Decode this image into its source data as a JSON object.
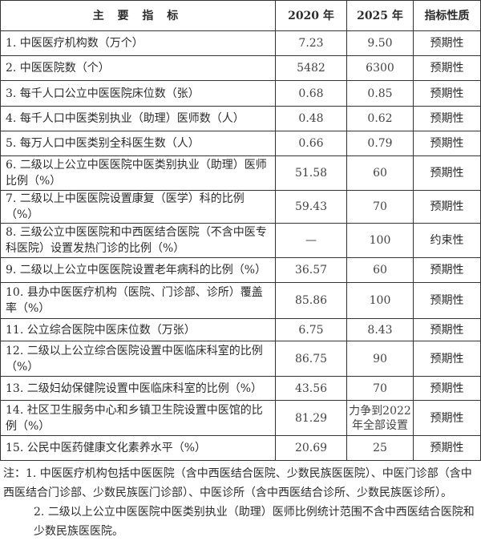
{
  "table": {
    "headers": [
      "主 要 指 标",
      "2020 年",
      "2025 年",
      "指标性质"
    ],
    "rows": [
      {
        "indicator": "1. 中医医疗机构数（万个）",
        "y2020": "7.23",
        "y2025": "9.50",
        "nature": "预期性"
      },
      {
        "indicator": "2. 中医医院数（个）",
        "y2020": "5482",
        "y2025": "6300",
        "nature": "预期性"
      },
      {
        "indicator": "3. 每千人口公立中医医院床位数（张）",
        "y2020": "0.68",
        "y2025": "0.85",
        "nature": "预期性"
      },
      {
        "indicator": "4. 每千人口中医类别执业（助理）医师数（人）",
        "y2020": "0.48",
        "y2025": "0.62",
        "nature": "预期性"
      },
      {
        "indicator": "5. 每万人口中医类别全科医生数（人）",
        "y2020": "0.66",
        "y2025": "0.79",
        "nature": "预期性"
      },
      {
        "indicator": "6. 二级以上公立中医医院中医类别执业（助理）医师比例（%）",
        "y2020": "51.58",
        "y2025": "60",
        "nature": "预期性"
      },
      {
        "indicator": "7. 二级以上中医医院设置康复（医学）科的比例（%）",
        "y2020": "59.43",
        "y2025": "70",
        "nature": "预期性"
      },
      {
        "indicator": "8. 三级公立中医医院和中西医结合医院（不含中医专科医院）设置发热门诊的比例（%）",
        "y2020": "—",
        "y2025": "100",
        "nature": "约束性"
      },
      {
        "indicator": "9. 二级以上公立中医医院设置老年病科的比例（%）",
        "y2020": "36.57",
        "y2025": "60",
        "nature": "预期性"
      },
      {
        "indicator": "10. 县办中医医疗机构（医院、门诊部、诊所）覆盖率（%）",
        "y2020": "85.86",
        "y2025": "100",
        "nature": "预期性"
      },
      {
        "indicator": "11. 公立综合医院中医床位数（万张）",
        "y2020": "6.75",
        "y2025": "8.43",
        "nature": "预期性"
      },
      {
        "indicator": "12. 二级以上公立综合医院设置中医临床科室的比例（%）",
        "y2020": "86.75",
        "y2025": "90",
        "nature": "预期性"
      },
      {
        "indicator": "13. 二级妇幼保健院设置中医临床科室的比例（%）",
        "y2020": "43.56",
        "y2025": "70",
        "nature": "预期性"
      },
      {
        "indicator": "14. 社区卫生服务中心和乡镇卫生院设置中医馆的比例（%）",
        "y2020": "81.29",
        "y2025": "力争到2022年全部设置",
        "nature": "预期性"
      },
      {
        "indicator": "15. 公民中医药健康文化素养水平（%）",
        "y2020": "20.69",
        "y2025": "25",
        "nature": "预期性"
      }
    ]
  },
  "notes": {
    "prefix": "注：",
    "items": [
      "1. 中医医疗机构包括中医医院（含中西医结合医院、少数民族医医院）、中医门诊部（含中西医结合门诊部、少数民族医门诊部）、中医诊所（含中西医结合诊所、少数民族医诊所）。",
      "2. 二级以上公立中医医院中医类别执业（助理）医师比例统计范围不含中西医结合医院和少数民族医医院。"
    ]
  }
}
